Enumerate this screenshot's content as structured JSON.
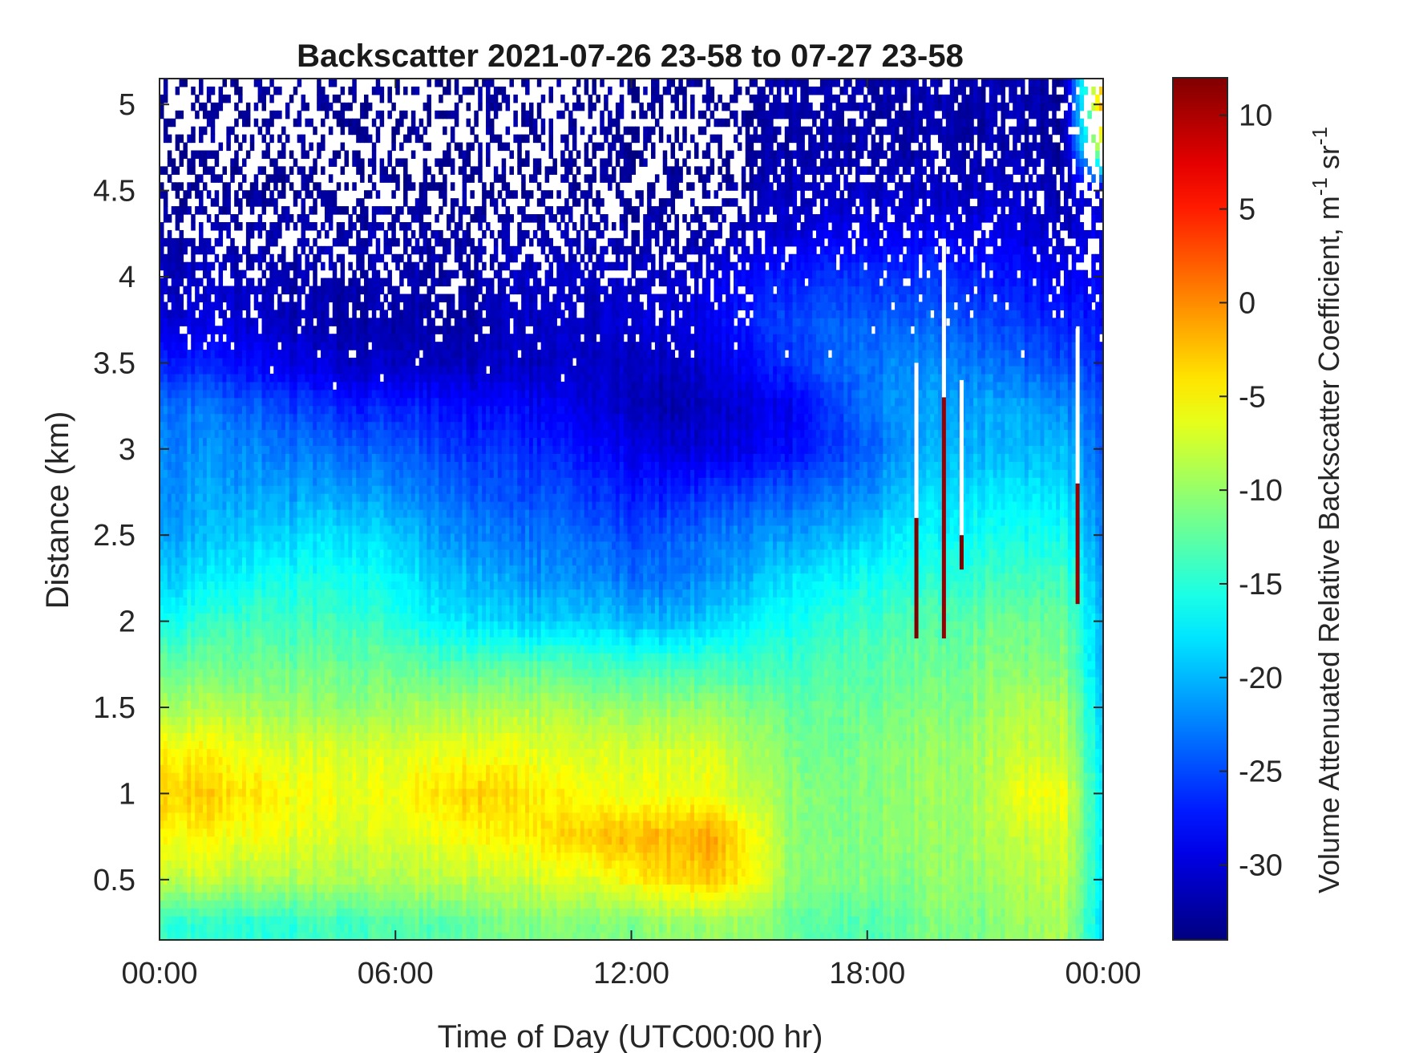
{
  "chart_data": {
    "type": "heatmap",
    "title": "Backscatter 2021-07-26 23-58 to 07-27 23-58",
    "xlabel": "Time of Day (UTC00:00 hr)",
    "ylabel": "Distance (km)",
    "colorbar_label": "Volume Attenuated Relative Backscatter Coefficient, m-1 sr-1",
    "colorbar_label_parts": {
      "main": "Volume Attenuated Relative Backscatter Coefficient, m",
      "exp1": "-1",
      "mid": " sr",
      "exp2": "-1"
    },
    "xlim_hours": [
      0,
      24
    ],
    "ylim_km": [
      0.15,
      5.15
    ],
    "clim": [
      -34,
      12
    ],
    "colormap": "jet",
    "x_ticks": [
      {
        "value": 0,
        "label": "00:00"
      },
      {
        "value": 6,
        "label": "06:00"
      },
      {
        "value": 12,
        "label": "12:00"
      },
      {
        "value": 18,
        "label": "18:00"
      },
      {
        "value": 24,
        "label": "00:00"
      }
    ],
    "y_ticks": [
      {
        "value": 0.5,
        "label": "0.5"
      },
      {
        "value": 1,
        "label": "1"
      },
      {
        "value": 1.5,
        "label": "1.5"
      },
      {
        "value": 2,
        "label": "2"
      },
      {
        "value": 2.5,
        "label": "2.5"
      },
      {
        "value": 3,
        "label": "3"
      },
      {
        "value": 3.5,
        "label": "3.5"
      },
      {
        "value": 4,
        "label": "4"
      },
      {
        "value": 4.5,
        "label": "4.5"
      },
      {
        "value": 5,
        "label": "5"
      }
    ],
    "colorbar_ticks": [
      {
        "value": 10,
        "label": "10"
      },
      {
        "value": 5,
        "label": "5"
      },
      {
        "value": 0,
        "label": "0"
      },
      {
        "value": -5,
        "label": "-5"
      },
      {
        "value": -10,
        "label": "-10"
      },
      {
        "value": -15,
        "label": "-15"
      },
      {
        "value": -20,
        "label": "-20"
      },
      {
        "value": -25,
        "label": "-25"
      },
      {
        "value": -30,
        "label": "-30"
      }
    ],
    "grid": false,
    "time_hours": [
      0,
      1,
      2,
      3,
      4,
      5,
      6,
      7,
      8,
      9,
      10,
      11,
      12,
      13,
      14,
      15,
      16,
      17,
      18,
      19,
      20,
      21,
      22,
      23,
      24
    ],
    "distance_km": [
      0.25,
      0.5,
      0.75,
      1.0,
      1.25,
      1.5,
      1.75,
      2.0,
      2.25,
      2.5,
      2.75,
      3.0,
      3.25,
      3.5,
      3.75,
      4.0,
      4.25,
      4.5,
      4.75,
      5.0
    ],
    "values": [
      [
        -14,
        -15,
        -15,
        -15,
        -14,
        -14,
        -13,
        -13,
        -12,
        -11,
        -11,
        -11,
        -11,
        -10,
        -10,
        -10,
        -12,
        -13,
        -13,
        -12,
        -11,
        -11,
        -10,
        -9,
        -18
      ],
      [
        -8,
        -8,
        -9,
        -9,
        -9,
        -9,
        -9,
        -8,
        -8,
        -8,
        -7,
        -7,
        -5,
        -4,
        -3,
        -5,
        -10,
        -11,
        -11,
        -11,
        -10,
        -10,
        -9,
        -8,
        -17
      ],
      [
        -5,
        -5,
        -6,
        -6,
        -7,
        -7,
        -7,
        -6,
        -5,
        -5,
        -4,
        -3,
        -2,
        -2,
        -1,
        -5,
        -10,
        -11,
        -11,
        -10,
        -10,
        -9,
        -8,
        -7,
        -17
      ],
      [
        -3,
        -3,
        -4,
        -5,
        -6,
        -6,
        -6,
        -4,
        -3,
        -4,
        -5,
        -6,
        -6,
        -6,
        -6,
        -8,
        -10,
        -11,
        -11,
        -10,
        -10,
        -9,
        -6,
        -6,
        -17
      ],
      [
        -5,
        -5,
        -6,
        -7,
        -7,
        -7,
        -7,
        -6,
        -6,
        -6,
        -7,
        -7,
        -7,
        -7,
        -7,
        -9,
        -11,
        -12,
        -11,
        -10,
        -10,
        -9,
        -8,
        -8,
        -18
      ],
      [
        -9,
        -9,
        -9,
        -10,
        -10,
        -10,
        -10,
        -9,
        -9,
        -9,
        -9,
        -10,
        -10,
        -10,
        -10,
        -11,
        -12,
        -12,
        -12,
        -11,
        -11,
        -10,
        -9,
        -9,
        -19
      ],
      [
        -12,
        -12,
        -12,
        -12,
        -12,
        -12,
        -12,
        -13,
        -13,
        -13,
        -13,
        -14,
        -14,
        -14,
        -14,
        -14,
        -14,
        -13,
        -13,
        -12,
        -12,
        -11,
        -11,
        -11,
        -20
      ],
      [
        -16,
        -15,
        -14,
        -14,
        -14,
        -14,
        -15,
        -17,
        -18,
        -19,
        -19,
        -19,
        -20,
        -20,
        -19,
        -17,
        -16,
        -15,
        -14,
        -13,
        -13,
        -12,
        -12,
        -12,
        -20
      ],
      [
        -19,
        -18,
        -17,
        -16,
        -16,
        -16,
        -17,
        -19,
        -20,
        -21,
        -22,
        -22,
        -23,
        -23,
        -22,
        -20,
        -18,
        -17,
        -16,
        -15,
        -15,
        -14,
        -14,
        -14,
        -21
      ],
      [
        -21,
        -20,
        -19,
        -19,
        -18,
        -18,
        -19,
        -21,
        -22,
        -23,
        -23,
        -24,
        -25,
        -24,
        -23,
        -22,
        -21,
        -20,
        -19,
        -17,
        -17,
        -16,
        -16,
        -16,
        -22
      ],
      [
        -22,
        -21,
        -21,
        -21,
        -21,
        -21,
        -22,
        -23,
        -24,
        -25,
        -25,
        -26,
        -27,
        -27,
        -26,
        -25,
        -24,
        -23,
        -22,
        -19,
        -18,
        -18,
        -18,
        -18,
        -23
      ],
      [
        -22,
        -22,
        -22,
        -23,
        -23,
        -24,
        -24,
        -25,
        -26,
        -26,
        -27,
        -28,
        -29,
        -30,
        -30,
        -29,
        -28,
        -26,
        -24,
        -21,
        -20,
        -20,
        -20,
        -20,
        -24
      ],
      [
        -23,
        -23,
        -24,
        -25,
        -26,
        -27,
        -27,
        -27,
        -28,
        -28,
        -29,
        -30,
        -31,
        -32,
        -31,
        -30,
        -29,
        -26,
        -23,
        -21,
        -21,
        -21,
        -21,
        -22,
        -24
      ],
      [
        -27,
        -27,
        -28,
        -29,
        -30,
        -31,
        -31,
        -31,
        -31,
        -31,
        -31,
        -31,
        -31,
        -31,
        -30,
        -28,
        -26,
        -24,
        -23,
        -22,
        -22,
        -23,
        -24,
        -25,
        -26
      ],
      [
        -30,
        -30,
        -30,
        -31,
        -32,
        -32,
        -32,
        -32,
        -32,
        -31,
        -31,
        -31,
        -30,
        -30,
        -29,
        -27,
        -25,
        -24,
        -24,
        -24,
        -24,
        -25,
        -26,
        -27,
        -27
      ],
      [
        -31,
        -31,
        -31,
        -32,
        -32,
        -32,
        -32,
        -32,
        -32,
        -31,
        -31,
        -31,
        -31,
        -31,
        -30,
        -28,
        -27,
        -26,
        -26,
        -26,
        -26,
        -27,
        -28,
        -29,
        -28
      ],
      [
        -32,
        -32,
        -32,
        -32,
        -32,
        -32,
        -32,
        -32,
        -32,
        -32,
        -32,
        -32,
        -32,
        -32,
        -32,
        -31,
        -30,
        -29,
        -29,
        -29,
        -29,
        -29,
        -30,
        -31,
        -29
      ],
      [
        -33,
        -33,
        -33,
        -33,
        -33,
        -33,
        -33,
        -33,
        -33,
        -33,
        -33,
        -33,
        -33,
        -33,
        -33,
        -32,
        -31,
        -31,
        -31,
        -31,
        -31,
        -31,
        -31,
        -32,
        -29
      ],
      [
        -33,
        -33,
        -33,
        -33,
        -33,
        -33,
        -33,
        -33,
        -33,
        -33,
        -33,
        -33,
        -33,
        -33,
        -33,
        -33,
        -32,
        -32,
        -32,
        -32,
        -32,
        -32,
        -32,
        -33,
        -5
      ],
      [
        -33,
        -33,
        -33,
        -33,
        -33,
        -33,
        -33,
        -33,
        -33,
        -33,
        -33,
        -33,
        -33,
        -33,
        -33,
        -33,
        -32,
        -32,
        -32,
        -32,
        -32,
        -32,
        -32,
        -33,
        0
      ]
    ],
    "missing_fraction_by_row": [
      0,
      0,
      0,
      0,
      0,
      0,
      0,
      0,
      0,
      0,
      0,
      0,
      0,
      0.02,
      0.1,
      0.3,
      0.45,
      0.55,
      0.6,
      0.6
    ],
    "artifact_columns": [
      {
        "time_hours": 19.25,
        "values_from_km": 1.9,
        "values_to_km": 2.6,
        "level": 12
      },
      {
        "time_hours": 19.95,
        "values_from_km": 1.9,
        "values_to_km": 3.3,
        "level": 11
      },
      {
        "time_hours": 20.4,
        "values_from_km": 2.3,
        "values_to_km": 2.5,
        "level": 12
      },
      {
        "time_hours": 23.35,
        "values_from_km": 2.1,
        "values_to_km": 2.8,
        "level": 11
      }
    ]
  }
}
